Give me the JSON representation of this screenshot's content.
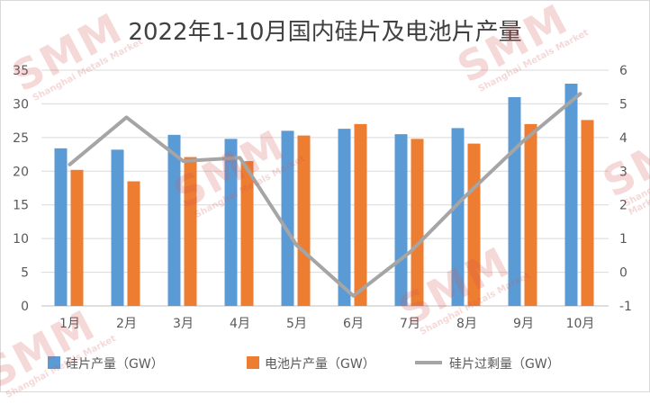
{
  "chart_data": {
    "type": "bar",
    "title": "2022年1-10月国内硅片及电池片产量",
    "categories": [
      "1月",
      "2月",
      "3月",
      "4月",
      "5月",
      "6月",
      "7月",
      "8月",
      "9月",
      "10月"
    ],
    "series": [
      {
        "name": "硅片产量（GW）",
        "type": "bar",
        "axis": "left",
        "color": "#5B9BD5",
        "values": [
          23.4,
          23.2,
          25.4,
          24.8,
          26.0,
          26.3,
          25.5,
          26.4,
          31.0,
          33.0
        ]
      },
      {
        "name": "电池片产量（GW）",
        "type": "bar",
        "axis": "left",
        "color": "#ED7D31",
        "values": [
          20.2,
          18.5,
          22.1,
          21.5,
          25.3,
          27.0,
          24.8,
          24.1,
          27.0,
          27.6
        ]
      },
      {
        "name": "硅片过剩量（GW）",
        "type": "line",
        "axis": "right",
        "color": "#A5A5A5",
        "values": [
          3.2,
          4.6,
          3.3,
          3.4,
          0.8,
          -0.7,
          0.6,
          2.3,
          3.9,
          5.3
        ]
      }
    ],
    "y_left": {
      "min": 0,
      "max": 35,
      "ticks": [
        "0",
        "5",
        "10",
        "15",
        "20",
        "25",
        "30",
        "35"
      ]
    },
    "y_right": {
      "min": -1,
      "max": 6,
      "ticks": [
        "-1",
        "0",
        "1",
        "2",
        "3",
        "4",
        "5",
        "6"
      ]
    },
    "grid": true,
    "legend": "bottom"
  },
  "watermark": {
    "brand": "SMM",
    "sub": "Shanghai Metals Market"
  }
}
